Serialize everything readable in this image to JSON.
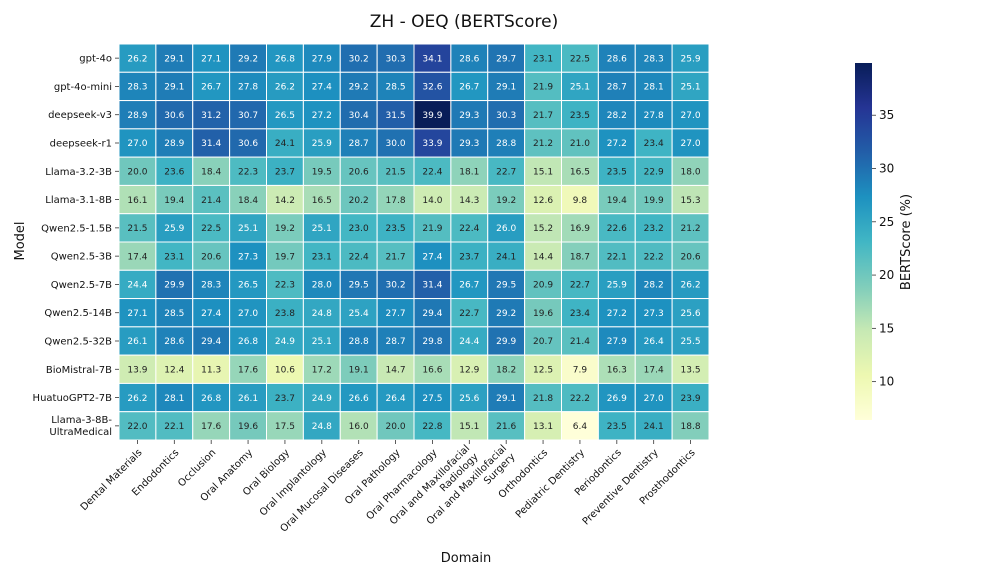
{
  "chart_data": {
    "type": "heatmap",
    "title": "ZH - OEQ (BERTScore)",
    "xlabel": "Domain",
    "ylabel": "Model",
    "colorbar_label": "BERTScore (%)",
    "colorbar_ticks": [
      10,
      15,
      20,
      25,
      30,
      35
    ],
    "colorbar_range": [
      6.4,
      39.9
    ],
    "colormap": "YlGnBu",
    "domains": [
      "Dental Materials",
      "Endodontics",
      "Occlusion",
      "Oral Anatomy",
      "Oral Biology",
      "Oral Implantology",
      "Oral Mucosal Diseases",
      "Oral Pathology",
      "Oral Pharmacology",
      "Oral and Maxillofacial Radiology",
      "Oral and Maxillofacial Surgery",
      "Orthodontics",
      "Pediatric Dentistry",
      "Periodontics",
      "Preventive Dentistry",
      "Prosthodontics"
    ],
    "models": [
      "gpt-4o",
      "gpt-4o-mini",
      "deepseek-v3",
      "deepseek-r1",
      "Llama-3.2-3B",
      "Llama-3.1-8B",
      "Qwen2.5-1.5B",
      "Qwen2.5-3B",
      "Qwen2.5-7B",
      "Qwen2.5-14B",
      "Qwen2.5-32B",
      "BioMistral-7B",
      "HuatuoGPT2-7B",
      "Llama-3-8B-UltraMedical"
    ],
    "values": [
      [
        26.2,
        29.1,
        27.1,
        29.2,
        26.8,
        27.9,
        30.2,
        30.3,
        34.1,
        28.6,
        29.7,
        23.1,
        22.5,
        28.6,
        28.3,
        25.9
      ],
      [
        28.3,
        29.1,
        26.7,
        27.8,
        26.2,
        27.4,
        29.2,
        28.5,
        32.6,
        26.7,
        29.1,
        21.9,
        25.1,
        28.7,
        28.1,
        25.1
      ],
      [
        28.9,
        30.6,
        31.2,
        30.7,
        26.5,
        27.2,
        30.4,
        31.5,
        39.9,
        29.3,
        30.3,
        21.7,
        23.5,
        28.2,
        27.8,
        27.0
      ],
      [
        27.0,
        28.9,
        31.4,
        30.6,
        24.1,
        25.9,
        28.7,
        30.0,
        33.9,
        29.3,
        28.8,
        21.2,
        21.0,
        27.2,
        23.4,
        27.0
      ],
      [
        20.0,
        23.6,
        18.4,
        22.3,
        23.7,
        19.5,
        20.6,
        21.5,
        22.4,
        18.1,
        22.7,
        15.1,
        16.5,
        23.5,
        22.9,
        18.0
      ],
      [
        16.1,
        19.4,
        21.4,
        18.4,
        14.2,
        16.5,
        20.2,
        17.8,
        14.0,
        14.3,
        19.2,
        12.6,
        9.8,
        19.4,
        19.9,
        15.3
      ],
      [
        21.5,
        25.9,
        22.5,
        25.1,
        19.2,
        25.1,
        23.0,
        23.5,
        21.9,
        22.4,
        26.0,
        15.2,
        16.9,
        22.6,
        23.2,
        21.2
      ],
      [
        17.4,
        23.1,
        20.6,
        27.3,
        19.7,
        23.1,
        22.4,
        21.7,
        27.4,
        23.7,
        24.1,
        14.4,
        18.7,
        22.1,
        22.2,
        20.6
      ],
      [
        24.4,
        29.9,
        28.3,
        26.5,
        22.3,
        28.0,
        29.5,
        30.2,
        31.4,
        26.7,
        29.5,
        20.9,
        22.7,
        25.9,
        28.2,
        26.2
      ],
      [
        27.1,
        28.5,
        27.4,
        27.0,
        23.8,
        24.8,
        25.4,
        27.7,
        29.4,
        22.7,
        29.2,
        19.6,
        23.4,
        27.2,
        27.3,
        25.6
      ],
      [
        26.1,
        28.6,
        29.4,
        26.8,
        24.9,
        25.1,
        28.8,
        28.7,
        29.8,
        24.4,
        29.9,
        20.7,
        21.4,
        27.9,
        26.4,
        25.5
      ],
      [
        13.9,
        12.4,
        11.3,
        17.6,
        10.6,
        17.2,
        19.1,
        14.7,
        16.6,
        12.9,
        18.2,
        12.5,
        7.9,
        16.3,
        17.4,
        13.5
      ],
      [
        26.2,
        28.1,
        26.8,
        26.1,
        23.7,
        24.9,
        26.6,
        26.4,
        27.5,
        25.6,
        29.1,
        21.8,
        22.2,
        26.9,
        27.0,
        23.9
      ],
      [
        22.0,
        22.1,
        17.6,
        19.6,
        17.5,
        24.8,
        16.0,
        20.0,
        22.8,
        15.1,
        21.6,
        13.1,
        6.4,
        23.5,
        24.1,
        18.8
      ]
    ]
  }
}
